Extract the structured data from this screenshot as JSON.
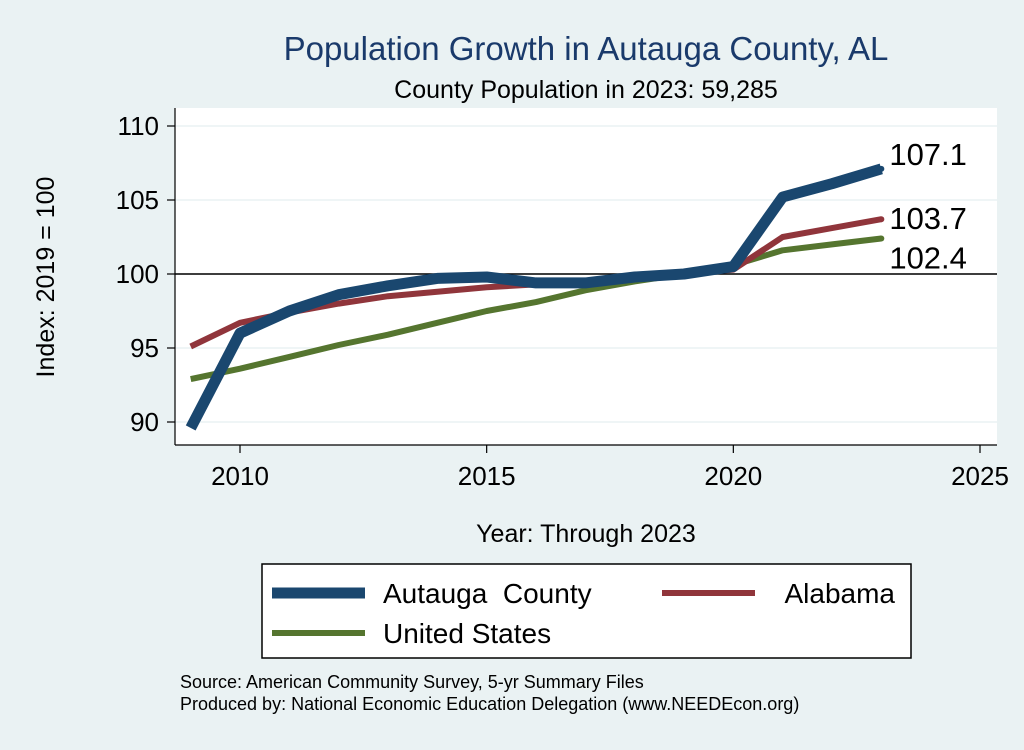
{
  "chart_data": {
    "type": "line",
    "title": "Population Growth in Autauga County, AL",
    "subtitle": "County Population in 2023: 59,285",
    "xlabel": "Year: Through 2023",
    "ylabel": "Index: 2019 = 100",
    "xlim": [
      2009,
      2025
    ],
    "ylim": [
      88.5,
      111
    ],
    "x_ticks": [
      2010,
      2015,
      2020,
      2025
    ],
    "y_ticks": [
      90,
      95,
      100,
      105,
      110
    ],
    "reference_line": 100,
    "grid": "horizontal",
    "series": [
      {
        "name": "Autauga  County",
        "color": "#1a476f",
        "x": [
          2009,
          2010,
          2011,
          2012,
          2013,
          2014,
          2015,
          2016,
          2017,
          2018,
          2019,
          2020,
          2021,
          2022,
          2023
        ],
        "values": [
          89.6,
          96.0,
          97.5,
          98.6,
          99.2,
          99.7,
          99.8,
          99.4,
          99.4,
          99.8,
          100.0,
          100.5,
          105.2,
          106.1,
          107.1
        ],
        "end_label": "107.1"
      },
      {
        "name": "Alabama",
        "color": "#90353b",
        "x": [
          2009,
          2010,
          2011,
          2012,
          2013,
          2014,
          2015,
          2016,
          2017,
          2018,
          2019,
          2020,
          2021,
          2022,
          2023
        ],
        "values": [
          95.1,
          96.7,
          97.4,
          98.0,
          98.5,
          98.8,
          99.1,
          99.3,
          99.5,
          99.8,
          100.0,
          100.3,
          102.5,
          103.1,
          103.7
        ],
        "end_label": "103.7"
      },
      {
        "name": "United States",
        "color": "#55752f",
        "x": [
          2009,
          2010,
          2011,
          2012,
          2013,
          2014,
          2015,
          2016,
          2017,
          2018,
          2019,
          2020,
          2021,
          2022,
          2023
        ],
        "values": [
          92.9,
          93.6,
          94.4,
          95.2,
          95.9,
          96.7,
          97.5,
          98.1,
          98.9,
          99.5,
          100.0,
          100.6,
          101.6,
          102.0,
          102.4
        ],
        "end_label": "102.4"
      }
    ],
    "legend": {
      "placement": "bottom"
    },
    "notes": [
      "Source: American Community Survey, 5-yr Summary Files",
      "Produced by: National Economic Education Delegation (www.NEEDEcon.org)"
    ]
  }
}
